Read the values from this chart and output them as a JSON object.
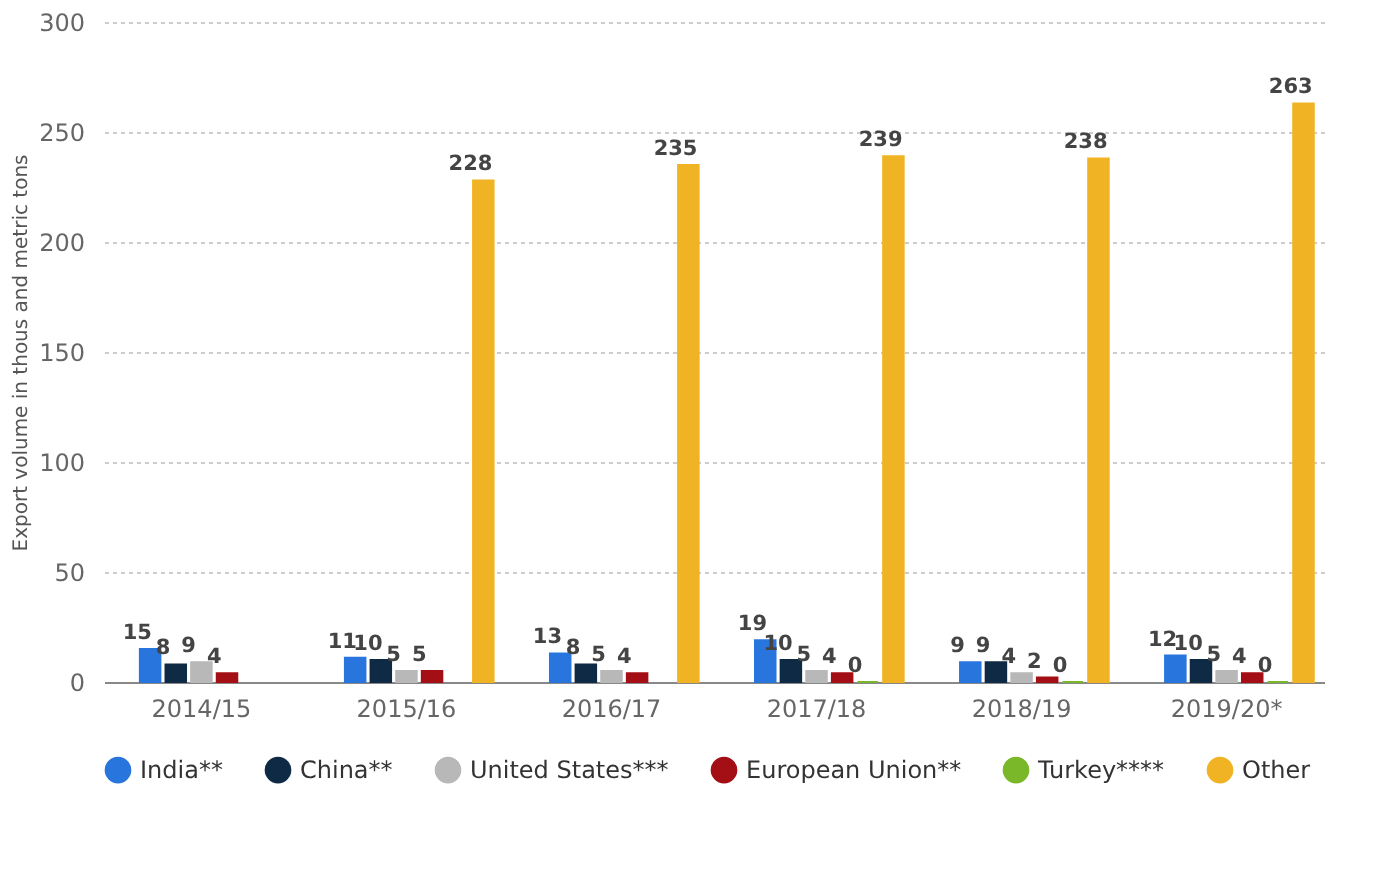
{
  "chart_data": {
    "type": "bar",
    "ylabel": "Export volume in thous and metric tons",
    "categories": [
      "2014/15",
      "2015/16",
      "2016/17",
      "2017/18",
      "2018/19",
      "2019/20*"
    ],
    "series": [
      {
        "name": "India**",
        "color": "#2876dd",
        "values": [
          15,
          11,
          13,
          19,
          9,
          12
        ]
      },
      {
        "name": "China**",
        "color": "#0f2a44",
        "values": [
          8,
          10,
          8,
          10,
          9,
          10
        ]
      },
      {
        "name": "United States***",
        "color": "#b8b8b8",
        "values": [
          9,
          5,
          5,
          5,
          4,
          5
        ]
      },
      {
        "name": "European Union**",
        "color": "#a30f15",
        "values": [
          4,
          5,
          4,
          4,
          2,
          4
        ]
      },
      {
        "name": "Turkey****",
        "color": "#7ab829",
        "values": [
          null,
          null,
          null,
          0,
          0,
          0
        ]
      },
      {
        "name": "Other",
        "color": "#f0b323",
        "values": [
          null,
          228,
          235,
          239,
          238,
          263
        ]
      }
    ],
    "ylim": [
      0,
      300
    ],
    "yticks": [
      0,
      50,
      100,
      150,
      200,
      250,
      300
    ],
    "grid": "y",
    "legend": "bottom",
    "data_labels": true
  }
}
